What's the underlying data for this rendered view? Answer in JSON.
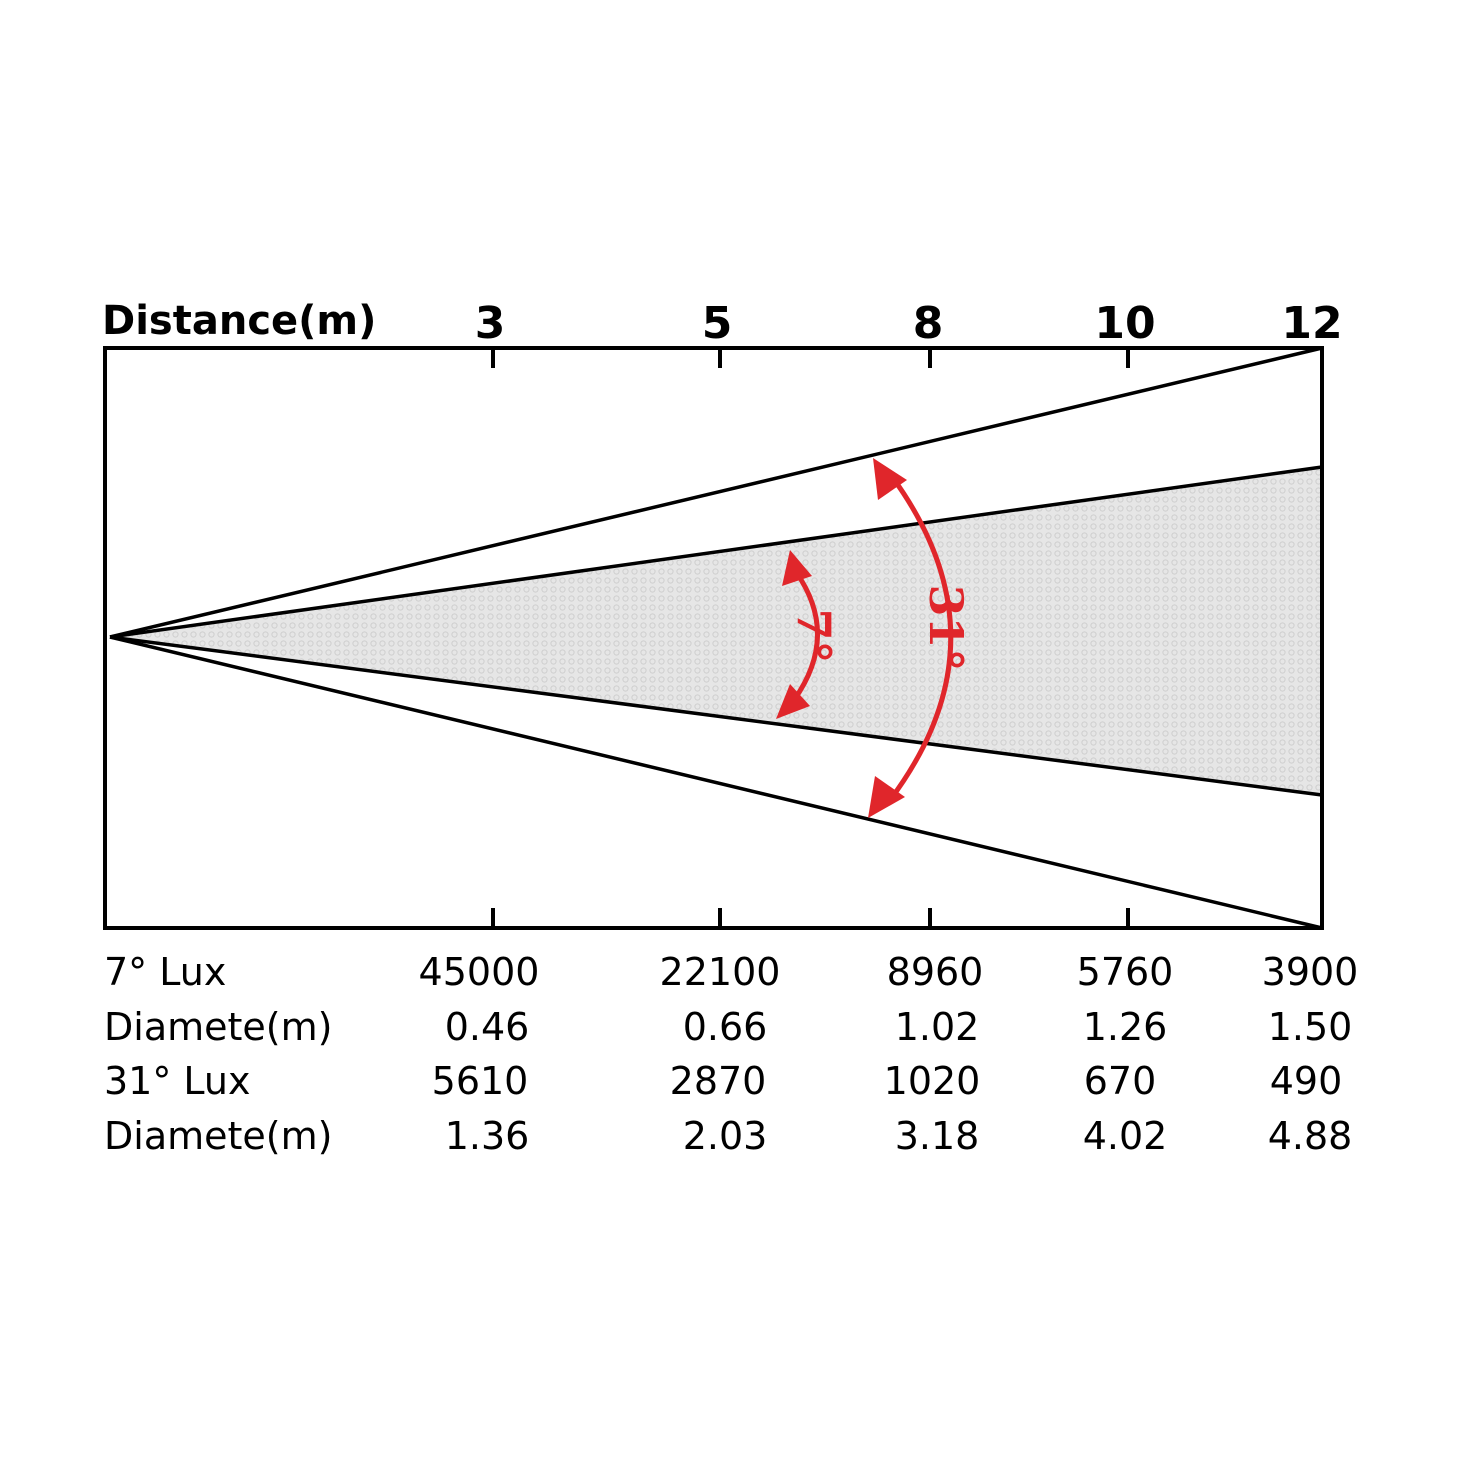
{
  "header": {
    "axis_title": "Distance(m)"
  },
  "distances": [
    "3",
    "5",
    "8",
    "10",
    "12"
  ],
  "beams": [
    {
      "angle": "7°",
      "label": "7°"
    },
    {
      "angle": "31°",
      "label": "31°"
    }
  ],
  "table": {
    "rows": [
      {
        "label": "7°  Lux",
        "values": [
          "45000",
          "22100",
          "8960",
          "5760",
          "3900"
        ]
      },
      {
        "label": "Diamete(m)",
        "values": [
          "0.46",
          "0.66",
          "1.02",
          "1.26",
          "1.50"
        ]
      },
      {
        "label": "31°  Lux",
        "values": [
          "5610",
          "2870",
          "1020",
          "670",
          "490"
        ]
      },
      {
        "label": "Diamete(m)",
        "values": [
          "1.36",
          "2.03",
          "3.18",
          "4.02",
          "4.88"
        ]
      }
    ]
  },
  "colors": {
    "arrow": "#e0262b",
    "beam_fill": "#e4e4e4",
    "line": "#000000"
  }
}
